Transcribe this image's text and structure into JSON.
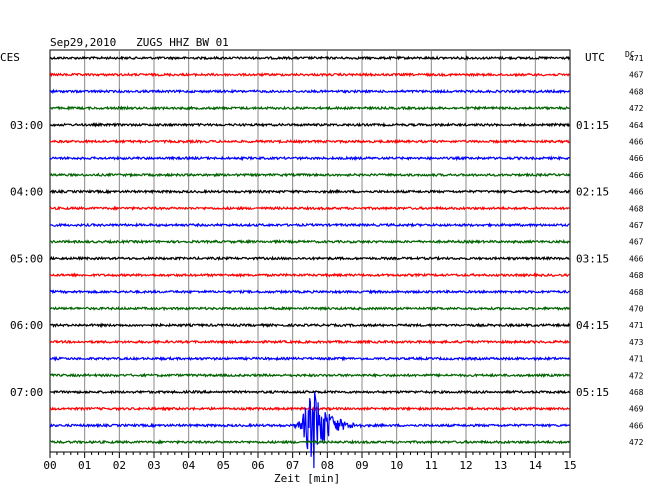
{
  "chart_data": {
    "type": "line",
    "title": "Sep29,2010   ZUGS HHZ BW 01",
    "left_timezone": "CES",
    "right_timezone": "UTC",
    "dc_label": "DC",
    "xlabel": "Zeit [min]",
    "xlim": [
      0,
      15
    ],
    "x_ticks": [
      "00",
      "01",
      "02",
      "03",
      "04",
      "05",
      "06",
      "07",
      "08",
      "09",
      "10",
      "11",
      "12",
      "13",
      "14",
      "15"
    ],
    "trace_colors": [
      "#000000",
      "#ff0000",
      "#0000ff",
      "#006400"
    ],
    "left_hour_labels": [
      {
        "trace": 4,
        "label": "03:00"
      },
      {
        "trace": 8,
        "label": "04:00"
      },
      {
        "trace": 12,
        "label": "05:00"
      },
      {
        "trace": 16,
        "label": "06:00"
      },
      {
        "trace": 20,
        "label": "07:00"
      }
    ],
    "right_hour_labels": [
      {
        "trace": 4,
        "label": "01:15"
      },
      {
        "trace": 8,
        "label": "02:15"
      },
      {
        "trace": 12,
        "label": "03:15"
      },
      {
        "trace": 16,
        "label": "04:15"
      },
      {
        "trace": 20,
        "label": "05:15"
      }
    ],
    "dc_values": [
      471,
      467,
      468,
      472,
      464,
      466,
      466,
      466,
      466,
      468,
      467,
      467,
      466,
      468,
      468,
      470,
      471,
      473,
      471,
      472,
      468,
      469,
      466,
      472
    ],
    "events": [
      {
        "trace": 22,
        "start_min": 7.0,
        "peak_min": 7.6,
        "end_min": 9.0,
        "peak_amplitude": 1.0
      }
    ],
    "grid": true
  }
}
